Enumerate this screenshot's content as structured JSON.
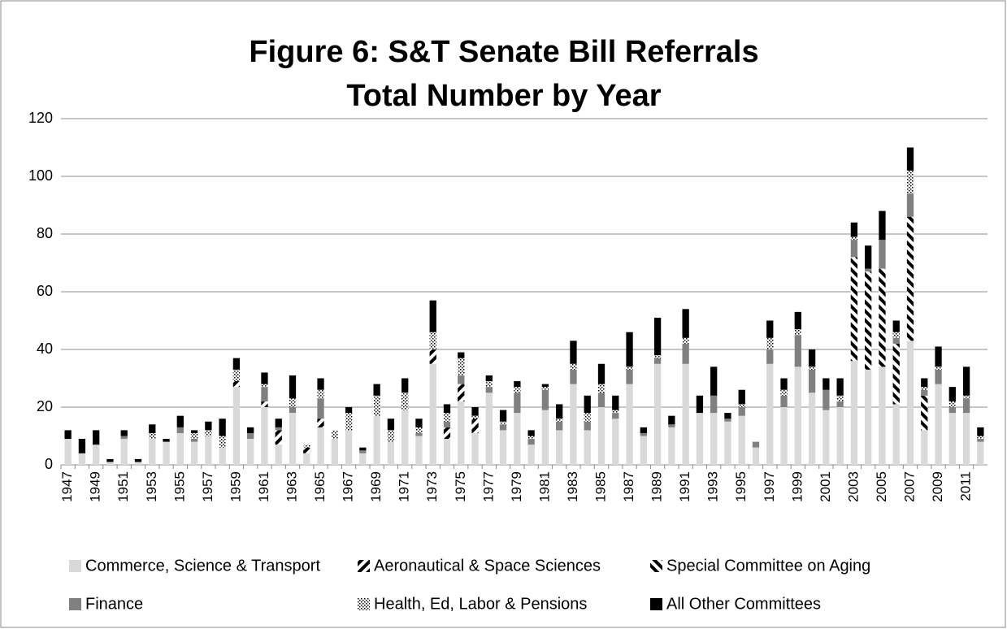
{
  "chart_data": {
    "type": "bar",
    "stacked": true,
    "title": "Figure 6: S&T Senate Bill Referrals",
    "subtitle": "Total Number by Year",
    "categories": [
      "1947",
      null,
      "1949",
      null,
      "1951",
      null,
      "1953",
      null,
      "1955",
      null,
      "1957",
      null,
      "1959",
      null,
      "1961",
      null,
      "1963",
      null,
      "1965",
      null,
      "1967",
      null,
      "1969",
      null,
      "1971",
      null,
      "1973",
      null,
      "1975",
      null,
      "1977",
      null,
      "1979",
      null,
      "1981",
      null,
      "1983",
      null,
      "1985",
      null,
      "1987",
      null,
      "1989",
      null,
      "1991",
      null,
      "1993",
      null,
      "1995",
      null,
      "1997",
      null,
      "1999",
      null,
      "2001",
      null,
      "2003",
      null,
      "2005",
      null,
      "2007",
      null,
      "2009",
      null,
      "2011",
      null
    ],
    "series": [
      {
        "name": "Commerce, Science & Transport",
        "color": "#d9d9d9",
        "values": [
          9,
          4,
          7,
          1,
          9,
          1,
          9,
          8,
          11,
          8,
          10,
          6,
          27,
          9,
          20,
          7,
          18,
          4,
          13,
          9,
          12,
          4,
          17,
          8,
          19,
          10,
          35,
          9,
          22,
          11,
          25,
          12,
          18,
          7,
          19,
          12,
          28,
          12,
          20,
          16,
          28,
          10,
          35,
          13,
          35,
          18,
          18,
          15,
          17,
          6,
          35,
          20,
          34,
          25,
          19,
          20,
          36,
          33,
          34,
          21,
          43,
          12,
          28,
          18,
          18,
          8
        ]
      },
      {
        "name": "Aeronautical & Space Sciences",
        "color": "#000000",
        "pattern": "forward-hatch",
        "values": [
          0,
          0,
          0,
          0,
          0,
          0,
          0,
          0,
          0,
          0,
          0,
          0,
          2,
          0,
          2,
          5,
          0,
          2,
          3,
          0,
          0,
          0,
          0,
          0,
          0,
          0,
          5,
          4,
          6,
          5,
          0,
          0,
          0,
          0,
          0,
          0,
          0,
          0,
          0,
          0,
          0,
          0,
          0,
          0,
          0,
          0,
          0,
          0,
          0,
          0,
          0,
          0,
          0,
          0,
          0,
          0,
          0,
          0,
          0,
          0,
          0,
          0,
          0,
          0,
          0,
          0
        ]
      },
      {
        "name": "Special Committee on Aging",
        "color": "#000000",
        "pattern": "back-hatch",
        "values": [
          0,
          0,
          0,
          0,
          0,
          0,
          0,
          0,
          0,
          0,
          0,
          0,
          0,
          0,
          0,
          0,
          0,
          0,
          0,
          0,
          0,
          0,
          0,
          0,
          0,
          0,
          0,
          0,
          0,
          0,
          0,
          0,
          0,
          0,
          0,
          0,
          0,
          0,
          0,
          0,
          0,
          0,
          0,
          0,
          0,
          0,
          0,
          0,
          0,
          0,
          0,
          0,
          0,
          0,
          0,
          0,
          36,
          34,
          34,
          21,
          43,
          12,
          0,
          0,
          0,
          0
        ]
      },
      {
        "name": "Finance",
        "color": "#808080",
        "values": [
          0,
          0,
          0,
          0,
          1,
          0,
          0,
          0,
          2,
          1,
          0,
          0,
          0,
          2,
          5,
          1,
          2,
          0,
          7,
          0,
          0,
          1,
          0,
          0,
          0,
          1,
          0,
          2,
          3,
          0,
          2,
          2,
          7,
          2,
          7,
          3,
          5,
          3,
          5,
          2,
          5,
          1,
          2,
          1,
          7,
          0,
          6,
          1,
          3,
          2,
          5,
          4,
          11,
          8,
          7,
          2,
          6,
          1,
          10,
          2,
          8,
          2,
          5,
          2,
          5,
          1
        ]
      },
      {
        "name": "Health, Ed, Labor & Pensions",
        "color": "#000000",
        "pattern": "dots",
        "values": [
          0,
          0,
          0,
          0,
          0,
          0,
          2,
          0,
          0,
          2,
          2,
          4,
          4,
          0,
          1,
          0,
          3,
          1,
          3,
          3,
          6,
          0,
          7,
          4,
          6,
          2,
          6,
          3,
          6,
          1,
          2,
          1,
          2,
          1,
          1,
          1,
          2,
          3,
          3,
          1,
          1,
          0,
          1,
          0,
          2,
          0,
          0,
          0,
          1,
          0,
          4,
          2,
          2,
          1,
          0,
          2,
          1,
          0,
          0,
          2,
          8,
          1,
          1,
          2,
          1,
          1
        ]
      },
      {
        "name": "All Other Committees",
        "color": "#000000",
        "values": [
          3,
          5,
          5,
          1,
          2,
          1,
          3,
          1,
          4,
          1,
          3,
          6,
          4,
          2,
          4,
          3,
          8,
          0,
          4,
          0,
          2,
          1,
          4,
          4,
          5,
          3,
          11,
          3,
          2,
          3,
          2,
          4,
          2,
          2,
          1,
          5,
          8,
          6,
          7,
          5,
          12,
          2,
          13,
          3,
          10,
          6,
          10,
          2,
          5,
          0,
          6,
          4,
          6,
          6,
          4,
          6,
          5,
          8,
          10,
          4,
          8,
          3,
          7,
          5,
          10,
          3
        ]
      }
    ],
    "ylim": [
      0,
      120
    ],
    "yticks": [
      0,
      20,
      40,
      60,
      80,
      100,
      120
    ],
    "grid": true,
    "legend": "bottom"
  }
}
